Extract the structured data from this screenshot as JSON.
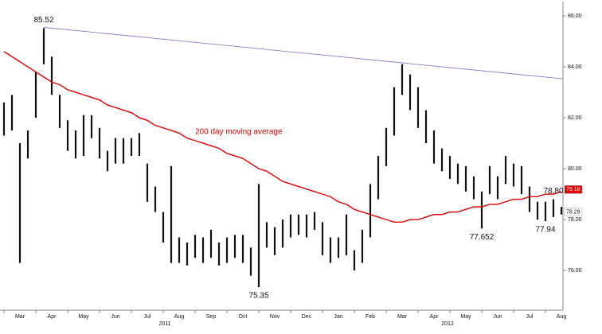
{
  "chart_data": {
    "type": "ohlc",
    "annotation": "200 day moving average",
    "ylim": [
      74.6,
      86.5
    ],
    "yticks": [
      {
        "value": 76,
        "label": "76.00"
      },
      {
        "value": 78,
        "label": "78.00"
      },
      {
        "value": 80,
        "label": "80.00"
      },
      {
        "value": 82,
        "label": "82.00"
      },
      {
        "value": 84,
        "label": "84.00"
      },
      {
        "value": 86,
        "label": "86.00"
      }
    ],
    "categories": [
      null,
      null,
      "Mar",
      null,
      null,
      null,
      "Apr",
      null,
      null,
      null,
      "May",
      null,
      null,
      null,
      "Jun",
      null,
      null,
      null,
      "Jul",
      null,
      null,
      null,
      "Aug",
      null,
      null,
      null,
      "Sep",
      null,
      null,
      null,
      "Oct",
      null,
      null,
      null,
      "Nov",
      null,
      null,
      null,
      "Dec",
      null,
      null,
      null,
      "Jan",
      null,
      null,
      null,
      "Feb",
      null,
      null,
      null,
      "Mar",
      null,
      null,
      null,
      "Apr",
      null,
      null,
      null,
      "May",
      null,
      null,
      null,
      "Jun",
      null,
      null,
      null,
      "Jul",
      null,
      null,
      null,
      "Aug"
    ],
    "year_labels": [
      "2011",
      "2012"
    ],
    "color": "#111111",
    "high": [
      82.6,
      82.9,
      81.0,
      81.5,
      83.8,
      85.52,
      84.4,
      82.9,
      81.9,
      81.5,
      82.1,
      82.1,
      81.6,
      80.7,
      81.2,
      81.2,
      81.2,
      81.4,
      80.2,
      79.3,
      78.3,
      80.1,
      77.3,
      77.1,
      77.4,
      77.3,
      77.6,
      77.1,
      77.3,
      77.4,
      77.4,
      76.9,
      79.4,
      77.9,
      77.7,
      78.0,
      78.2,
      78.2,
      78.2,
      78.3,
      77.9,
      77.3,
      77.3,
      78.2,
      76.8,
      77.6,
      79.4,
      80.5,
      81.6,
      83.2,
      84.1,
      83.7,
      83.2,
      82.3,
      81.5,
      80.8,
      80.5,
      80.2,
      80.1,
      79.7,
      79.1,
      80.1,
      79.7,
      80.5,
      80.2,
      80.1,
      79.3,
      78.7,
      78.7,
      78.8,
      78.5
    ],
    "low": [
      81.3,
      81.5,
      76.3,
      80.4,
      82.0,
      84.1,
      82.9,
      81.6,
      80.7,
      80.4,
      80.5,
      81.2,
      80.4,
      79.9,
      80.2,
      80.2,
      80.5,
      80.5,
      78.7,
      78.3,
      77.1,
      76.3,
      76.3,
      76.2,
      76.5,
      76.3,
      76.5,
      76.2,
      76.3,
      76.5,
      76.3,
      75.8,
      75.35,
      76.9,
      76.6,
      76.9,
      77.3,
      77.4,
      77.3,
      77.6,
      76.6,
      76.3,
      76.5,
      76.6,
      76.0,
      76.3,
      77.3,
      78.8,
      80.1,
      81.3,
      82.9,
      82.3,
      81.6,
      81.0,
      80.2,
      79.9,
      79.6,
      79.4,
      79.1,
      78.8,
      77.652,
      79.0,
      78.8,
      79.4,
      79.3,
      79.0,
      78.3,
      78.0,
      77.94,
      78.1,
      78.2
    ],
    "high_labels": [
      null,
      null,
      null,
      null,
      null,
      "85.52",
      null,
      null,
      null,
      null,
      null,
      null,
      null,
      null,
      null,
      null,
      null,
      null,
      null,
      null,
      null,
      null,
      null,
      null,
      null,
      null,
      null,
      null,
      null,
      null,
      null,
      null,
      null,
      null,
      null,
      null,
      null,
      null,
      null,
      null,
      null,
      null,
      null,
      null,
      null,
      null,
      null,
      null,
      null,
      null,
      null,
      null,
      null,
      null,
      null,
      null,
      null,
      null,
      null,
      null,
      null,
      null,
      null,
      null,
      null,
      null,
      null,
      null,
      null,
      "78.80",
      null
    ],
    "low_labels": [
      null,
      null,
      null,
      null,
      null,
      null,
      null,
      null,
      null,
      null,
      null,
      null,
      null,
      null,
      null,
      null,
      null,
      null,
      null,
      null,
      null,
      null,
      null,
      null,
      null,
      null,
      null,
      null,
      null,
      null,
      null,
      null,
      "75.35",
      null,
      null,
      null,
      null,
      null,
      null,
      null,
      null,
      null,
      null,
      null,
      null,
      null,
      null,
      null,
      null,
      null,
      null,
      null,
      null,
      null,
      null,
      null,
      null,
      null,
      null,
      null,
      "77.652",
      null,
      null,
      null,
      null,
      null,
      null,
      null,
      "77.94",
      null,
      null
    ],
    "moving_average": {
      "color": "#e00000",
      "values": [
        84.6,
        84.4,
        84.2,
        84.0,
        83.8,
        83.6,
        83.4,
        83.3,
        83.1,
        83.0,
        82.9,
        82.8,
        82.7,
        82.5,
        82.4,
        82.3,
        82.2,
        82.0,
        81.9,
        81.7,
        81.6,
        81.5,
        81.4,
        81.2,
        81.1,
        81.0,
        80.9,
        80.8,
        80.6,
        80.5,
        80.4,
        80.2,
        80.0,
        79.9,
        79.7,
        79.5,
        79.4,
        79.3,
        79.2,
        79.1,
        79.0,
        78.9,
        78.7,
        78.6,
        78.4,
        78.3,
        78.2,
        78.1,
        78.0,
        77.9,
        77.9,
        78.0,
        78.0,
        78.1,
        78.2,
        78.2,
        78.3,
        78.3,
        78.4,
        78.5,
        78.5,
        78.6,
        78.6,
        78.7,
        78.8,
        78.8,
        78.9,
        78.9,
        79.0,
        79.0,
        79.1
      ]
    },
    "trendline": {
      "color": "#7070cc",
      "start": 85.55,
      "end": 83.53
    },
    "last_markers": [
      {
        "value": 79.18,
        "color": "#e00000",
        "text_color": "#ffffff"
      },
      {
        "value": 78.29,
        "color": "#ffffff",
        "text_color": "#111111"
      }
    ]
  }
}
